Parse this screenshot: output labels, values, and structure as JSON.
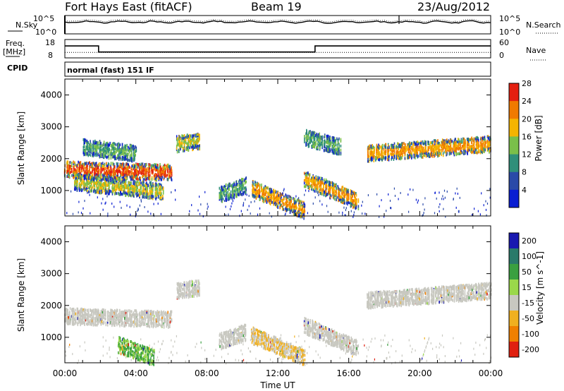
{
  "header": {
    "title": "Fort Hays East (fitACF)",
    "beam": "Beam 19",
    "date": "23/Aug/2012"
  },
  "noise_panel": {
    "left_label": "N.Sky",
    "right_label": "N.Search",
    "left_ticks": [
      "10^5",
      "10^0"
    ],
    "right_ticks": [
      "10^5",
      "10^0"
    ]
  },
  "freq_panel": {
    "left_label": "Freq.",
    "left_unit": "[MHz]",
    "right_label": "Nave",
    "left_ticks": [
      "18",
      "8"
    ],
    "right_ticks": [
      "60",
      "0"
    ]
  },
  "cpid": {
    "label": "CPID",
    "mode": "normal (fast) 151 IF"
  },
  "x_axis": {
    "label": "Time UT",
    "ticks": [
      "00:00",
      "04:00",
      "08:00",
      "12:00",
      "16:00",
      "20:00",
      "00:00"
    ]
  },
  "power_panel": {
    "ylabel": "Slant Range [km]",
    "yticks": [
      "1000",
      "2000",
      "3000",
      "4000"
    ],
    "colorbar_label": "Power [dB]",
    "colorbar_ticks": [
      "4",
      "8",
      "12",
      "16",
      "20",
      "24",
      "28"
    ],
    "colorbar_colors": [
      "#0a1ed2",
      "#2a4aa8",
      "#2f8f7a",
      "#7abf4a",
      "#f5b400",
      "#f07a00",
      "#e42010"
    ]
  },
  "velocity_panel": {
    "ylabel": "Slant Range [km]",
    "yticks": [
      "1000",
      "2000",
      "3000",
      "4000"
    ],
    "colorbar_label": "Velocity [m s^-1]",
    "colorbar_ticks": [
      "200",
      "100",
      "50",
      "15",
      "-15",
      "-50",
      "-100",
      "-200"
    ],
    "colorbar_colors": [
      "#1818b0",
      "#2a7a6a",
      "#3aa040",
      "#9ad84a",
      "#c8c8c0",
      "#f0b020",
      "#f08000",
      "#e02010"
    ]
  },
  "chart_data": {
    "type": "heatmap",
    "x_range_hours": [
      0,
      24
    ],
    "y_range_km": [
      200,
      4500
    ],
    "power_scatter_bands": [
      {
        "start_h": 0.0,
        "end_h": 6.0,
        "start_km": 1700,
        "end_km": 1600,
        "power_db": 28
      },
      {
        "start_h": 0.5,
        "end_h": 5.5,
        "start_km": 1300,
        "end_km": 1000,
        "power_db": 20
      },
      {
        "start_h": 1.0,
        "end_h": 4.0,
        "start_km": 2400,
        "end_km": 2200,
        "power_db": 16
      },
      {
        "start_h": 6.3,
        "end_h": 7.6,
        "start_km": 2500,
        "end_km": 2600,
        "power_db": 20
      },
      {
        "start_h": 8.7,
        "end_h": 10.2,
        "start_km": 900,
        "end_km": 1200,
        "power_db": 16
      },
      {
        "start_h": 10.5,
        "end_h": 13.5,
        "start_km": 1100,
        "end_km": 400,
        "power_db": 24
      },
      {
        "start_h": 13.5,
        "end_h": 16.5,
        "start_km": 1400,
        "end_km": 700,
        "power_db": 24
      },
      {
        "start_h": 13.5,
        "end_h": 15.5,
        "start_km": 2700,
        "end_km": 2400,
        "power_db": 16
      },
      {
        "start_h": 17.0,
        "end_h": 24.0,
        "start_km": 2200,
        "end_km": 2500,
        "power_db": 24
      }
    ],
    "velocity_scatter_bands": [
      {
        "start_h": 0.0,
        "end_h": 6.0,
        "start_km": 1700,
        "end_km": 1600,
        "velocity_ms": 0
      },
      {
        "start_h": 3.0,
        "end_h": 5.0,
        "start_km": 800,
        "end_km": 400,
        "velocity_ms": 50
      },
      {
        "start_h": 6.3,
        "end_h": 7.6,
        "start_km": 2500,
        "end_km": 2600,
        "velocity_ms": 0
      },
      {
        "start_h": 8.7,
        "end_h": 10.2,
        "start_km": 900,
        "end_km": 1200,
        "velocity_ms": 0
      },
      {
        "start_h": 10.5,
        "end_h": 13.5,
        "start_km": 1100,
        "end_km": 400,
        "velocity_ms": -50
      },
      {
        "start_h": 13.5,
        "end_h": 16.5,
        "start_km": 1400,
        "end_km": 700,
        "velocity_ms": 0
      },
      {
        "start_h": 17.0,
        "end_h": 24.0,
        "start_km": 2200,
        "end_km": 2500,
        "velocity_ms": 0
      }
    ],
    "freq_segments": [
      {
        "start_h": 0.0,
        "end_h": 1.9,
        "freq_mhz": 14.5
      },
      {
        "start_h": 1.9,
        "end_h": 14.1,
        "freq_mhz": 11.2
      },
      {
        "start_h": 14.1,
        "end_h": 24.0,
        "freq_mhz": 14.5
      }
    ],
    "nave_level": 18,
    "noise_level_log": 4.2
  }
}
